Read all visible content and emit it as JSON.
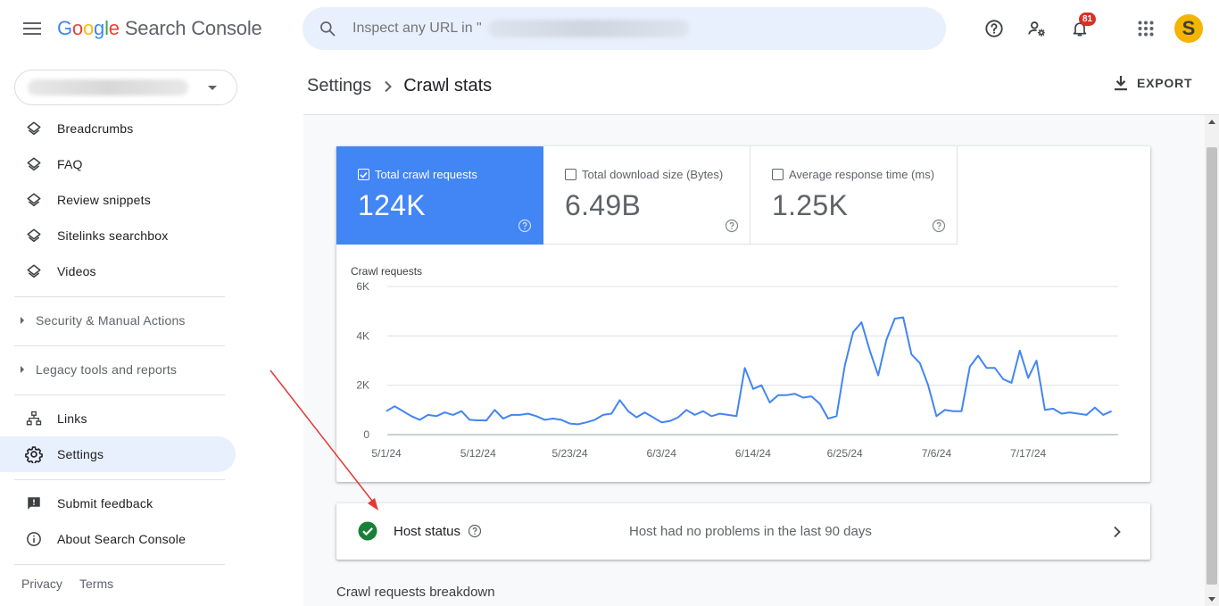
{
  "app": {
    "logo_google": [
      "G",
      "o",
      "o",
      "g",
      "l",
      "e"
    ],
    "logo_rest": "Search Console"
  },
  "search": {
    "placeholder": "Inspect any URL in \""
  },
  "topbar": {
    "help_icon": "help-circle-icon",
    "manage_users_icon": "manage-accounts-icon",
    "notifications_icon": "bell-icon",
    "notifications_count": "81",
    "apps_icon": "apps-grid-icon",
    "avatar_letter": "S",
    "avatar_color": "#f4b400"
  },
  "sidebar": {
    "items_top": [
      {
        "label": "Breadcrumbs",
        "icon": "layers-icon"
      },
      {
        "label": "FAQ",
        "icon": "layers-icon"
      },
      {
        "label": "Review snippets",
        "icon": "layers-icon"
      },
      {
        "label": "Sitelinks searchbox",
        "icon": "layers-icon"
      },
      {
        "label": "Videos",
        "icon": "layers-icon"
      }
    ],
    "groups": [
      {
        "label": "Security & Manual Actions"
      },
      {
        "label": "Legacy tools and reports"
      }
    ],
    "items_bottom": [
      {
        "label": "Links",
        "icon": "links-icon"
      },
      {
        "label": "Settings",
        "icon": "gear-icon",
        "active": true
      }
    ],
    "items_support": [
      {
        "label": "Submit feedback",
        "icon": "feedback-icon"
      },
      {
        "label": "About Search Console",
        "icon": "info-icon"
      }
    ],
    "footer": {
      "privacy": "Privacy",
      "terms": "Terms"
    }
  },
  "header": {
    "breadcrumb_parent": "Settings",
    "breadcrumb_current": "Crawl stats",
    "export_label": "EXPORT"
  },
  "metrics": [
    {
      "label": "Total crawl requests",
      "value": "124K",
      "checked": true
    },
    {
      "label": "Total download size (Bytes)",
      "value": "6.49B",
      "checked": false
    },
    {
      "label": "Average response time (ms)",
      "value": "1.25K",
      "checked": false
    }
  ],
  "chart_data": {
    "type": "line",
    "title": "Crawl requests",
    "ylabel": "",
    "xlabel": "",
    "ylim": [
      0,
      6000
    ],
    "yticks": [
      0,
      2000,
      4000,
      6000
    ],
    "ytick_labels": [
      "0",
      "2K",
      "4K",
      "6K"
    ],
    "xtick_labels": [
      "5/1/24",
      "5/12/24",
      "5/23/24",
      "6/3/24",
      "6/14/24",
      "6/25/24",
      "7/6/24",
      "7/17/24"
    ],
    "xtick_indices": [
      0,
      11,
      22,
      33,
      44,
      55,
      66,
      77
    ],
    "color": "#4285f4",
    "grid": true,
    "series": [
      {
        "values": [
          950,
          1150,
          950,
          750,
          600,
          800,
          750,
          900,
          800,
          950,
          600,
          580,
          580,
          1000,
          650,
          800,
          800,
          850,
          750,
          600,
          650,
          600,
          450,
          420,
          500,
          600,
          800,
          850,
          1400,
          950,
          700,
          900,
          700,
          500,
          550,
          700,
          1000,
          800,
          950,
          750,
          850,
          800,
          750,
          2700,
          1850,
          2000,
          1300,
          1600,
          1600,
          1650,
          1500,
          1550,
          1250,
          650,
          750,
          2800,
          4150,
          4550,
          3400,
          2400,
          3850,
          4700,
          4750,
          3250,
          2900,
          2000,
          750,
          1000,
          950,
          950,
          2750,
          3200,
          2700,
          2700,
          2250,
          2100,
          3400,
          2300,
          3000,
          1000,
          1050,
          850,
          900,
          850,
          800,
          1100,
          800,
          950
        ]
      }
    ]
  },
  "host_status": {
    "label": "Host status",
    "description": "Host had no problems in the last 90 days",
    "status_color": "#188038"
  },
  "breakdown": {
    "title": "Crawl requests breakdown"
  }
}
